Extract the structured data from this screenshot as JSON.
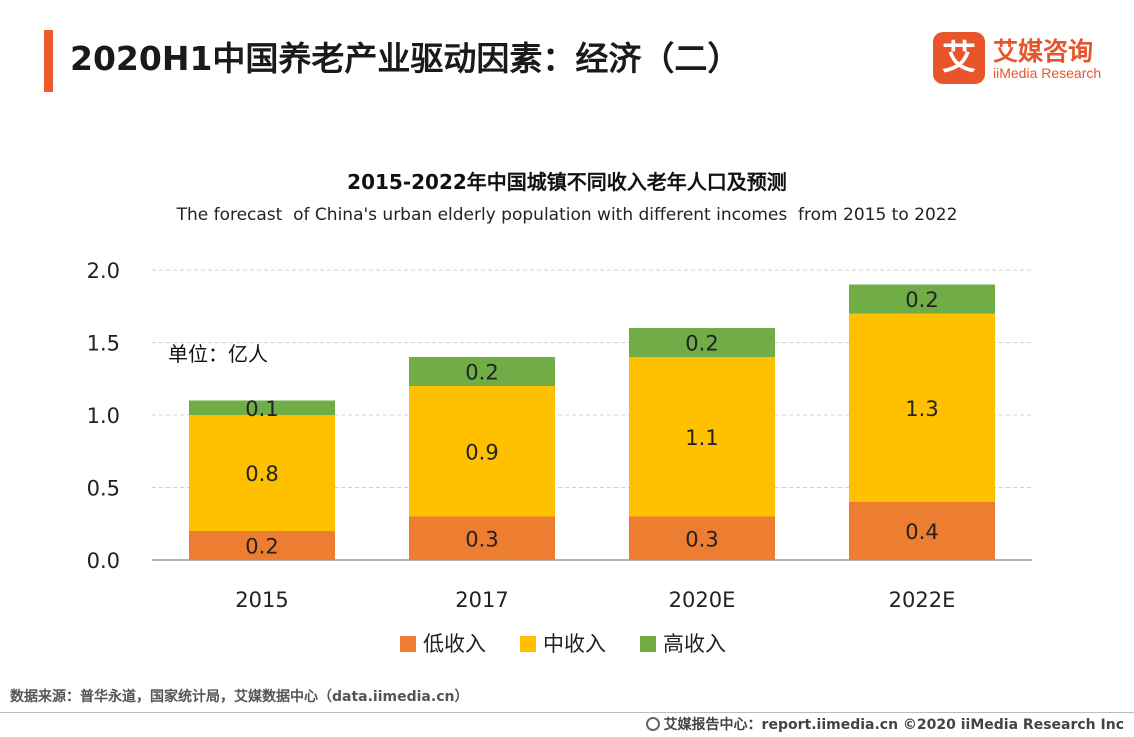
{
  "page": {
    "title": "2020H1中国养老产业驱动因素：经济（二）",
    "logo_mark": "艾",
    "logo_cn": "艾媒咨询",
    "logo_en": "iiMedia Research",
    "source": "数据来源：普华永道，国家统计局，艾媒数据中心（data.iimedia.cn）",
    "footer": "艾媒报告中心：report.iimedia.cn   ©2020  iiMedia Research  Inc"
  },
  "chart_data": {
    "type": "bar",
    "stacked": true,
    "title": "2015-2022年中国城镇不同收入老年人口及预测",
    "subtitle": "The forecast  of China's urban elderly population with different incomes  from 2015 to 2022",
    "unit_label": "单位：亿人",
    "categories": [
      "2015",
      "2017",
      "2020E",
      "2022E"
    ],
    "series": [
      {
        "name": "低收入",
        "color": "#ed7d31",
        "values": [
          0.2,
          0.3,
          0.3,
          0.4
        ]
      },
      {
        "name": "中收入",
        "color": "#ffc000",
        "values": [
          0.8,
          0.9,
          1.1,
          1.3
        ]
      },
      {
        "name": "高收入",
        "color": "#70ad47",
        "values": [
          0.1,
          0.2,
          0.2,
          0.2
        ]
      }
    ],
    "ylim": [
      0,
      2.0
    ],
    "yticks": [
      "0.0",
      "0.5",
      "1.0",
      "1.5",
      "2.0"
    ],
    "grid": true,
    "legend_position": "bottom"
  }
}
